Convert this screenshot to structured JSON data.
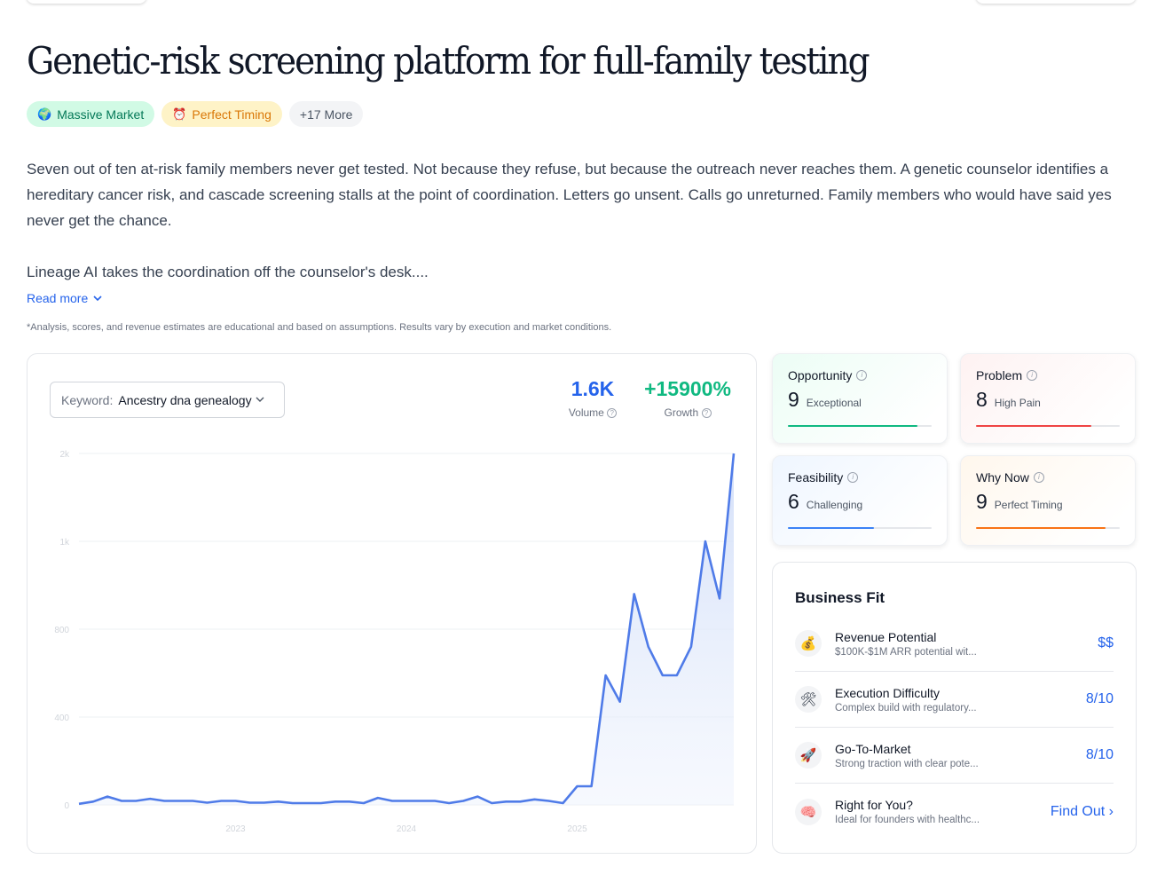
{
  "title": "Genetic-risk screening platform for full-family testing",
  "badges": [
    {
      "icon": "globe-icon",
      "label": "Massive Market"
    },
    {
      "icon": "alarm-clock-icon",
      "label": "Perfect Timing"
    },
    {
      "label": "+17 More"
    }
  ],
  "description": [
    "Seven out of ten at-risk family members never get tested. Not because they refuse, but because the outreach never reaches them. A genetic counselor identifies a hereditary cancer risk, and cascade screening stalls at the point of coordination. Letters go unsent. Calls go unreturned. Family members who would have said yes never get the chance.",
    "Lineage AI takes the coordination off the counselor's desk...."
  ],
  "read_more": "Read more",
  "disclaimer": "*Analysis, scores, and revenue estimates are educational and based on assumptions. Results vary by execution and market conditions.",
  "keyword": {
    "label": "Keyword:",
    "value": "Ancestry dna genealogy"
  },
  "metrics": {
    "volume": {
      "value": "1.6K",
      "label": "Volume",
      "color": "#2563eb"
    },
    "growth": {
      "value": "+15900%",
      "label": "Growth",
      "color": "#10b981"
    }
  },
  "chart_data": {
    "type": "area",
    "series": [
      {
        "values": [
          5,
          15,
          38,
          18,
          18,
          28,
          18,
          18,
          18,
          10,
          18,
          18,
          10,
          10,
          15,
          8,
          8,
          8,
          15,
          15,
          8,
          32,
          18,
          18,
          18,
          18,
          8,
          18,
          38,
          8,
          15,
          15,
          25,
          18,
          8,
          85,
          85,
          590,
          470,
          880,
          720,
          590,
          590,
          720,
          1000,
          870,
          2000
        ]
      }
    ],
    "x_tick_labels": [
      "2023",
      "2024",
      "2025"
    ],
    "x_tick_index": [
      11,
      23,
      35
    ],
    "y_tick_labels": [
      "0",
      "400",
      "800",
      "1k",
      "2k"
    ],
    "y_scale": "non-linear (ticks at 0, 400, 800, 1k, 2k equally spaced)",
    "line_color": "#4f7be8",
    "grid": true
  },
  "scores": [
    {
      "title": "Opportunity",
      "score": "9",
      "label": "Exceptional",
      "fill": 0.9,
      "color": "#10b981",
      "bg": "#ecfdf5"
    },
    {
      "title": "Problem",
      "score": "8",
      "label": "High Pain",
      "fill": 0.8,
      "color": "#ef4444",
      "bg": "#fef2f2"
    },
    {
      "title": "Feasibility",
      "score": "6",
      "label": "Challenging",
      "fill": 0.6,
      "color": "#3b82f6",
      "bg": "#eff6ff"
    },
    {
      "title": "Why Now",
      "score": "9",
      "label": "Perfect Timing",
      "fill": 0.9,
      "color": "#f97316",
      "bg": "#fff7ed"
    }
  ],
  "business_fit": {
    "title": "Business Fit",
    "items": [
      {
        "icon": "money-bag-icon",
        "glyph": "💰",
        "name": "Revenue Potential",
        "sub": "$100K-$1M ARR potential wit...",
        "value": "$$"
      },
      {
        "icon": "tools-icon",
        "glyph": "🛠",
        "name": "Execution Difficulty",
        "sub": "Complex build with regulatory...",
        "value": "8/10"
      },
      {
        "icon": "rocket-icon",
        "glyph": "🚀",
        "name": "Go-To-Market",
        "sub": "Strong traction with clear pote...",
        "value": "8/10"
      },
      {
        "icon": "brain-icon",
        "glyph": "🧠",
        "name": "Right for You?",
        "sub": "Ideal for founders with healthc...",
        "value": "Find Out ›"
      }
    ]
  }
}
